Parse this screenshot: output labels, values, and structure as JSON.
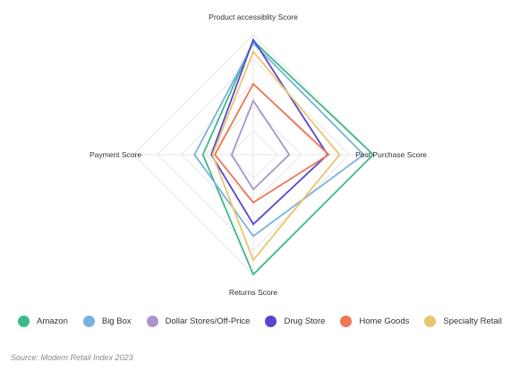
{
  "chart_data": {
    "type": "radar",
    "axes": [
      "Product accessiblity Score",
      "Post Purchase Score",
      "Returns Score",
      "Payment Score"
    ],
    "rmax": 10,
    "grid_levels": [
      2,
      4,
      6,
      8,
      10
    ],
    "series": [
      {
        "name": "Amazon",
        "color": "#3cb98a",
        "values": [
          9.5,
          10,
          10,
          4.2
        ]
      },
      {
        "name": "Big Box",
        "color": "#78b2dc",
        "values": [
          9.3,
          9.2,
          6.8,
          4.9
        ]
      },
      {
        "name": "Dollar Stores/Off-Price",
        "color": "#a995c9",
        "values": [
          4.5,
          3.0,
          2.9,
          1.8
        ]
      },
      {
        "name": "Drug Store",
        "color": "#5846cf",
        "values": [
          9.6,
          6.2,
          5.8,
          3.5
        ]
      },
      {
        "name": "Home Goods",
        "color": "#ee7650",
        "values": [
          5.9,
          6.3,
          4.0,
          3.2
        ]
      },
      {
        "name": "Specialty Retail",
        "color": "#e8c56e",
        "values": [
          8.6,
          7.2,
          8.8,
          3.4
        ]
      }
    ],
    "legend_position": "bottom"
  },
  "source": "Source: Modern Retail Index 2023"
}
